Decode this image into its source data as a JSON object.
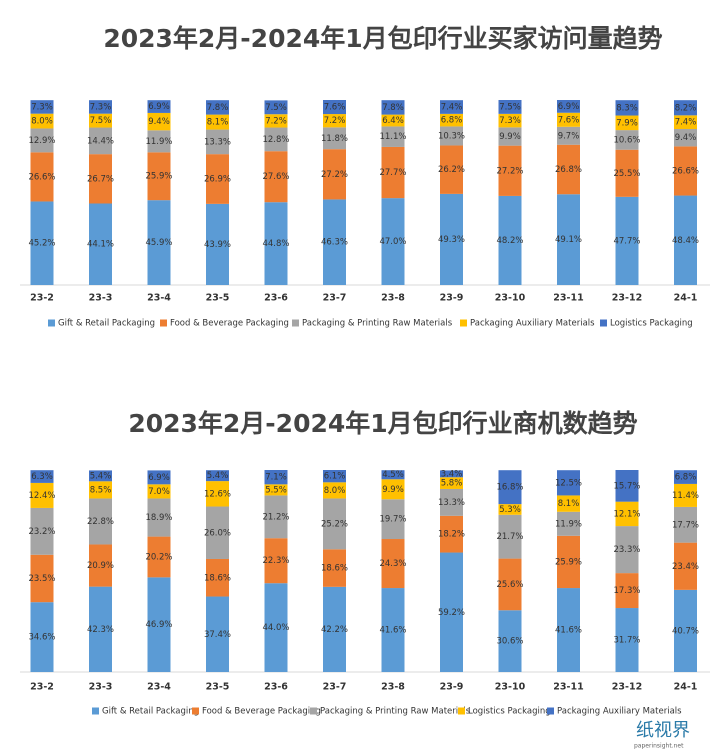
{
  "chart_data": [
    {
      "type": "stacked_bar",
      "title": "2023年2月-2024年1月包印行业买家访问量趋势",
      "categories": [
        "23-2",
        "23-3",
        "23-4",
        "23-5",
        "23-6",
        "23-7",
        "23-8",
        "23-9",
        "23-10",
        "23-11",
        "23-12",
        "24-1"
      ],
      "series": [
        {
          "name": "Gift & Retail Packaging",
          "color": "#5b9bd5",
          "values": [
            45.2,
            44.1,
            45.9,
            43.9,
            44.8,
            46.3,
            47.0,
            49.3,
            48.2,
            49.1,
            47.7,
            48.4
          ],
          "value_labels": [
            "45.2%",
            "44.1%",
            "45.9%",
            "43.9%",
            "44.8%",
            "46.3%",
            "47.0%",
            "49.3%",
            "48.2%",
            "49.1%",
            "47.7%",
            "48.4%"
          ]
        },
        {
          "name": "Food & Beverage Packaging",
          "color": "#ed7d31",
          "values": [
            26.6,
            26.7,
            25.9,
            26.9,
            27.6,
            27.2,
            27.7,
            26.2,
            27.2,
            26.8,
            25.5,
            26.6
          ],
          "value_labels": [
            "26.6%",
            "26.7%",
            "25.9%",
            "26.9%",
            "27.6%",
            "27.2%",
            "27.7%",
            "26.2%",
            "27.2%",
            "26.8%",
            "25.5%",
            "26.6%"
          ]
        },
        {
          "name": "Packaging & Printing Raw Materials",
          "color": "#a5a5a5",
          "values": [
            12.9,
            14.4,
            11.9,
            13.3,
            12.8,
            11.8,
            11.1,
            10.3,
            9.9,
            9.7,
            10.6,
            9.4
          ],
          "value_labels": [
            "12.9%",
            "14.4%",
            "11.9%",
            "13.3%",
            "12.8%",
            "11.8%",
            "11.1%",
            "10.3%",
            "9.9%",
            "9.7%",
            "10.6%",
            "9.4%"
          ]
        },
        {
          "name": "Packaging Auxiliary Materials",
          "color": "#ffc000",
          "values": [
            8.0,
            7.5,
            9.4,
            8.1,
            7.2,
            7.2,
            6.4,
            6.8,
            7.3,
            7.6,
            7.9,
            7.4
          ],
          "value_labels": [
            "8.0%",
            "7.5%",
            "9.4%",
            "8.1%",
            "7.2%",
            "7.2%",
            "6.4%",
            "6.8%",
            "7.3%",
            "7.6%",
            "7.9%",
            "7.4%"
          ]
        },
        {
          "name": "Logistics Packaging",
          "color": "#4472c4",
          "values": [
            7.3,
            7.3,
            6.9,
            7.8,
            7.5,
            7.6,
            7.8,
            7.4,
            7.5,
            6.9,
            8.3,
            8.2
          ],
          "value_labels": [
            "7.3%",
            "7.3%",
            "6.9%",
            "7.8%",
            "7.5%",
            "7.6%",
            "7.8%",
            "7.4%",
            "7.5%",
            "6.9%",
            "8.3%",
            "8.2%"
          ]
        }
      ]
    },
    {
      "type": "stacked_bar",
      "title": "2023年2月-2024年1月包印行业商机数趋势",
      "categories": [
        "23-2",
        "23-3",
        "23-4",
        "23-5",
        "23-6",
        "23-7",
        "23-8",
        "23-9",
        "23-10",
        "23-11",
        "23-12",
        "24-1"
      ],
      "series": [
        {
          "name": "Gift & Retail Packaging",
          "color": "#5b9bd5",
          "values": [
            34.6,
            42.3,
            46.9,
            37.4,
            44.0,
            42.2,
            41.6,
            59.2,
            30.6,
            41.6,
            31.7,
            40.7
          ],
          "value_labels": [
            "34.6%",
            "42.3%",
            "46.9%",
            "37.4%",
            "44.0%",
            "42.2%",
            "41.6%",
            "59.2%",
            "30.6%",
            "41.6%",
            "31.7%",
            "40.7%"
          ]
        },
        {
          "name": "Food & Beverage Packaging",
          "color": "#ed7d31",
          "values": [
            23.5,
            20.9,
            20.2,
            18.6,
            22.3,
            18.6,
            24.3,
            18.2,
            25.6,
            25.9,
            17.3,
            23.4
          ],
          "value_labels": [
            "23.5%",
            "20.9%",
            "20.2%",
            "18.6%",
            "22.3%",
            "18.6%",
            "24.3%",
            "18.2%",
            "25.6%",
            "25.9%",
            "17.3%",
            "23.4%"
          ]
        },
        {
          "name": "Packaging & Printing Raw Materials",
          "color": "#a5a5a5",
          "values": [
            23.2,
            22.8,
            18.9,
            26.0,
            21.2,
            25.2,
            19.7,
            13.3,
            21.7,
            11.9,
            23.3,
            17.7
          ],
          "value_labels": [
            "23.2%",
            "22.8%",
            "18.9%",
            "26.0%",
            "21.2%",
            "25.2%",
            "19.7%",
            "13.3%",
            "21.7%",
            "11.9%",
            "23.3%",
            "17.7%"
          ]
        },
        {
          "name": "Logistics Packaging",
          "color": "#ffc000",
          "values": [
            12.4,
            8.5,
            7.0,
            12.6,
            5.5,
            8.0,
            9.9,
            5.8,
            5.3,
            8.1,
            12.1,
            11.4
          ],
          "value_labels": [
            "12.4%",
            "8.5%",
            "7.0%",
            "12.6%",
            "5.5%",
            "8.0%",
            "9.9%",
            "5.8%",
            "5.3%",
            "8.1%",
            "12.1%",
            "11.4%"
          ]
        },
        {
          "name": "Packaging Auxiliary Materials",
          "color": "#4472c4",
          "values": [
            6.3,
            5.4,
            6.9,
            5.4,
            7.1,
            6.1,
            4.5,
            3.4,
            16.8,
            12.5,
            15.7,
            6.8
          ],
          "value_labels": [
            "6.3%",
            "5.4%",
            "6.9%",
            "5.4%",
            "7.1%",
            "6.1%",
            "4.5%",
            "3.4%",
            "16.8%",
            "12.5%",
            "15.7%",
            "6.8%"
          ]
        }
      ]
    }
  ],
  "watermark": {
    "name": "纸视界",
    "url": "paperinsight.net"
  }
}
